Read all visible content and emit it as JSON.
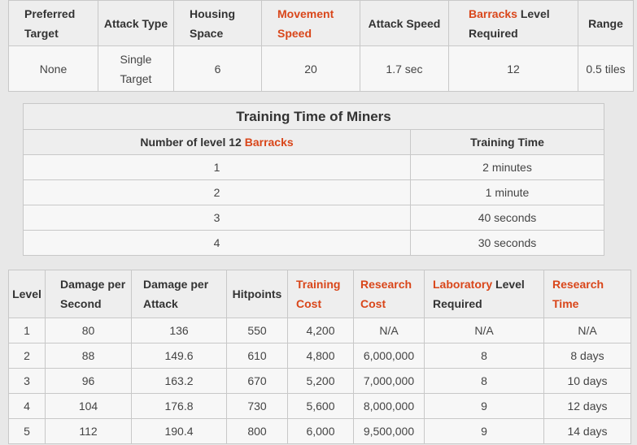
{
  "stats": {
    "headers": {
      "preferred_target": "Preferred Target",
      "attack_type": "Attack Type",
      "housing_space": "Housing Space",
      "movement_speed": "Movement Speed",
      "attack_speed": "Attack Speed",
      "barracks": "Barracks",
      "level_required": "Level Required",
      "range": "Range"
    },
    "values": {
      "preferred_target": "None",
      "attack_type": "Single Target",
      "housing_space": "6",
      "movement_speed": "20",
      "attack_speed": "1.7 sec",
      "barracks_level": "12",
      "range": "0.5 tiles"
    }
  },
  "training_time": {
    "caption": "Training Time of Miners",
    "col_number_prefix": "Number of level 12",
    "col_number_link": "Barracks",
    "col_time": "Training Time",
    "rows": [
      {
        "count": "1",
        "time": "2 minutes"
      },
      {
        "count": "2",
        "time": "1 minute"
      },
      {
        "count": "3",
        "time": "40 seconds"
      },
      {
        "count": "4",
        "time": "30 seconds"
      }
    ]
  },
  "levels": {
    "headers": {
      "level": "Level",
      "dps": "Damage per Second",
      "dpa": "Damage per Attack",
      "hitpoints": "Hitpoints",
      "training_cost": "Training Cost",
      "research_cost": "Research Cost",
      "laboratory": "Laboratory",
      "level_required": "Level Required",
      "research_time": "Research Time"
    },
    "rows": [
      {
        "level": "1",
        "dps": "80",
        "dpa": "136",
        "hp": "550",
        "train": "4,200",
        "research": "N/A",
        "lab": "N/A",
        "time": "N/A"
      },
      {
        "level": "2",
        "dps": "88",
        "dpa": "149.6",
        "hp": "610",
        "train": "4,800",
        "research": "6,000,000",
        "lab": "8",
        "time": "8 days"
      },
      {
        "level": "3",
        "dps": "96",
        "dpa": "163.2",
        "hp": "670",
        "train": "5,200",
        "research": "7,000,000",
        "lab": "8",
        "time": "10 days"
      },
      {
        "level": "4",
        "dps": "104",
        "dpa": "176.8",
        "hp": "730",
        "train": "5,600",
        "research": "8,000,000",
        "lab": "9",
        "time": "12 days"
      },
      {
        "level": "5",
        "dps": "112",
        "dpa": "190.4",
        "hp": "800",
        "train": "6,000",
        "research": "9,500,000",
        "lab": "9",
        "time": "14 days"
      }
    ]
  },
  "colors": {
    "link": "#d9461a",
    "header_bg": "#eeeeee",
    "cell_bg": "#f7f7f7",
    "border": "#c8c8c8"
  }
}
